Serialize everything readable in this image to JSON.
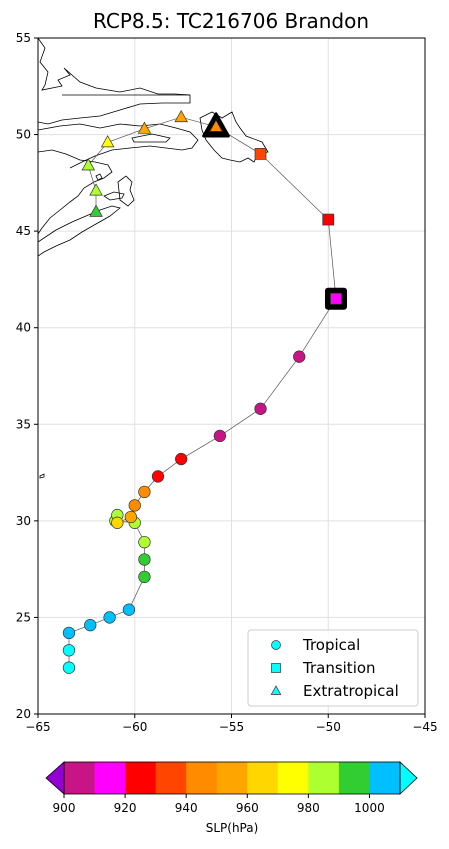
{
  "chart_data": {
    "type": "scatter",
    "title": "RCP8.5: TC216706 Brandon",
    "xlim": [
      -65,
      -45
    ],
    "ylim": [
      20,
      55
    ],
    "xticks": [
      -65,
      -60,
      -55,
      -50,
      -45
    ],
    "yticks": [
      20,
      25,
      30,
      35,
      40,
      45,
      50,
      55
    ],
    "grid": true,
    "legend_position": "lower-right",
    "legend": [
      {
        "label": "Tropical",
        "marker": "circle"
      },
      {
        "label": "Transition",
        "marker": "square"
      },
      {
        "label": "Extratropical",
        "marker": "triangle"
      }
    ],
    "colorbar": {
      "label": "SLP(hPa)",
      "bounds": [
        900,
        910,
        920,
        930,
        940,
        950,
        960,
        970,
        980,
        990,
        1000,
        1010
      ],
      "tick_values": [
        900,
        920,
        940,
        960,
        980,
        1000
      ],
      "colors": [
        "#c71585",
        "#ff00ff",
        "#ff0000",
        "#ff4500",
        "#ff8c00",
        "#ffa500",
        "#ffd700",
        "#ffff00",
        "#adff2f",
        "#32cd32",
        "#00bfff"
      ],
      "under_color": "#9400d3",
      "over_color": "#00ffff"
    },
    "track": [
      {
        "lon": -63.4,
        "lat": 22.4,
        "slp": 1012,
        "type": "tropical"
      },
      {
        "lon": -63.4,
        "lat": 23.3,
        "slp": 1012,
        "type": "tropical"
      },
      {
        "lon": -63.4,
        "lat": 24.2,
        "slp": 1005,
        "type": "tropical"
      },
      {
        "lon": -62.3,
        "lat": 24.6,
        "slp": 1005,
        "type": "tropical"
      },
      {
        "lon": -61.3,
        "lat": 25.0,
        "slp": 1005,
        "type": "tropical"
      },
      {
        "lon": -60.3,
        "lat": 25.4,
        "slp": 1005,
        "type": "tropical"
      },
      {
        "lon": -59.5,
        "lat": 27.1,
        "slp": 995,
        "type": "tropical"
      },
      {
        "lon": -59.5,
        "lat": 28.0,
        "slp": 995,
        "type": "tropical"
      },
      {
        "lon": -59.5,
        "lat": 28.9,
        "slp": 985,
        "type": "tropical"
      },
      {
        "lon": -60.0,
        "lat": 29.9,
        "slp": 985,
        "type": "tropical"
      },
      {
        "lon": -61.0,
        "lat": 30.0,
        "slp": 985,
        "type": "tropical"
      },
      {
        "lon": -60.9,
        "lat": 30.3,
        "slp": 985,
        "type": "tropical"
      },
      {
        "lon": -60.9,
        "lat": 29.9,
        "slp": 965,
        "type": "tropical"
      },
      {
        "lon": -60.2,
        "lat": 30.2,
        "slp": 955,
        "type": "tropical"
      },
      {
        "lon": -60.0,
        "lat": 30.8,
        "slp": 945,
        "type": "tropical"
      },
      {
        "lon": -59.5,
        "lat": 31.5,
        "slp": 945,
        "type": "tropical"
      },
      {
        "lon": -58.8,
        "lat": 32.3,
        "slp": 925,
        "type": "tropical"
      },
      {
        "lon": -57.6,
        "lat": 33.2,
        "slp": 925,
        "type": "tropical"
      },
      {
        "lon": -55.6,
        "lat": 34.4,
        "slp": 905,
        "type": "tropical"
      },
      {
        "lon": -53.5,
        "lat": 35.8,
        "slp": 905,
        "type": "tropical"
      },
      {
        "lon": -51.5,
        "lat": 38.5,
        "slp": 905,
        "type": "tropical"
      },
      {
        "lon": -49.6,
        "lat": 41.5,
        "slp": 915,
        "type": "transition"
      },
      {
        "lon": -50.0,
        "lat": 45.6,
        "slp": 925,
        "type": "transition"
      },
      {
        "lon": -53.5,
        "lat": 49.0,
        "slp": 935,
        "type": "transition"
      },
      {
        "lon": -55.8,
        "lat": 50.4,
        "slp": 945,
        "type": "extratropical"
      },
      {
        "lon": -57.6,
        "lat": 50.9,
        "slp": 955,
        "type": "extratropical"
      },
      {
        "lon": -59.5,
        "lat": 50.3,
        "slp": 955,
        "type": "extratropical"
      },
      {
        "lon": -61.4,
        "lat": 49.6,
        "slp": 975,
        "type": "extratropical"
      },
      {
        "lon": -62.4,
        "lat": 48.4,
        "slp": 985,
        "type": "extratropical"
      },
      {
        "lon": -62.0,
        "lat": 47.1,
        "slp": 985,
        "type": "extratropical"
      },
      {
        "lon": -62.0,
        "lat": 46.0,
        "slp": 995,
        "type": "extratropical"
      }
    ],
    "highlights": [
      {
        "lon": -55.8,
        "lat": 50.4,
        "marker": "triangle"
      },
      {
        "lon": -49.6,
        "lat": 41.5,
        "marker": "square"
      }
    ]
  }
}
